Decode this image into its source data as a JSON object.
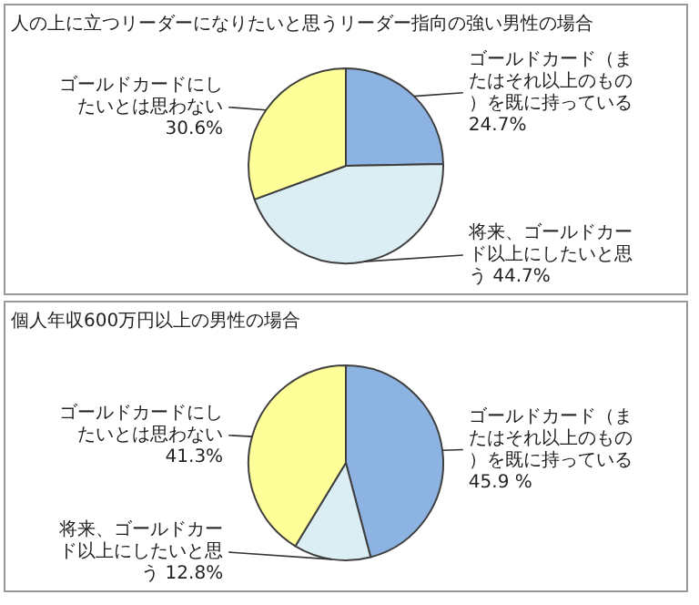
{
  "chart_data": [
    {
      "type": "pie",
      "title": "人の上に立つリーダーになりたいと思うリーダー指向の強い男性の場合",
      "categories": [
        "ゴールドカード（またはそれ以上のもの）を既に持っている",
        "将来、ゴールドカード以上にしたいと思う",
        "ゴールドカードにしたいとは思わない"
      ],
      "values": [
        24.7,
        44.7,
        30.6
      ],
      "colors": [
        "#8db3e2",
        "#dbeef4",
        "#ffff99"
      ],
      "value_labels": [
        "24.7%",
        "44.7%",
        "30.6%"
      ]
    },
    {
      "type": "pie",
      "title": "個人年収600万円以上の男性の場合",
      "categories": [
        "ゴールドカード（またはそれ以上のもの）を既に持っている",
        "将来、ゴールドカード以上にしたいと思う",
        "ゴールドカードにしたいとは思わない"
      ],
      "values": [
        45.9,
        12.8,
        41.3
      ],
      "colors": [
        "#8db3e2",
        "#dbeef4",
        "#ffff99"
      ],
      "value_labels": [
        "45.9 %",
        "12.8%",
        "41.3%"
      ]
    }
  ]
}
